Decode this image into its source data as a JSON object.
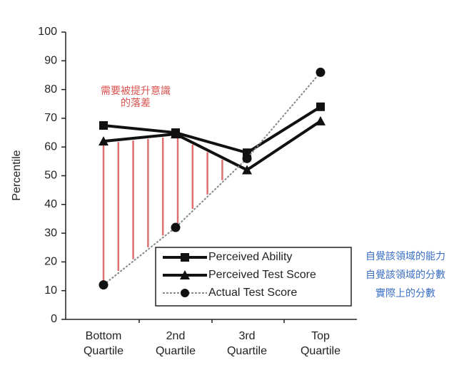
{
  "chart_data": {
    "type": "line",
    "y_label": "Percentile",
    "categories": [
      "Bottom Quartile",
      "2nd Quartile",
      "3rd Quartile",
      "Top Quartile"
    ],
    "series": [
      {
        "name": "Perceived Ability",
        "color": "#111111",
        "marker": "square",
        "values": [
          67.5,
          65,
          58,
          74
        ]
      },
      {
        "name": "Perceived Test Score",
        "color": "#111111",
        "marker": "triangle",
        "values": [
          62,
          64.5,
          52,
          69
        ]
      },
      {
        "name": "Actual Test Score",
        "color": "#888888",
        "marker": "circle",
        "dashed": true,
        "values": [
          12,
          32,
          56,
          86
        ]
      }
    ],
    "ylim": [
      0,
      100
    ],
    "yticks": [
      0,
      10,
      20,
      30,
      40,
      50,
      60,
      70,
      80,
      90,
      100
    ],
    "annotation": [
      "需要被提升意識",
      "的落差"
    ],
    "side_notes": [
      "自覺該領域的能力",
      "自覺該領域的分數",
      "實際上的分數"
    ]
  }
}
